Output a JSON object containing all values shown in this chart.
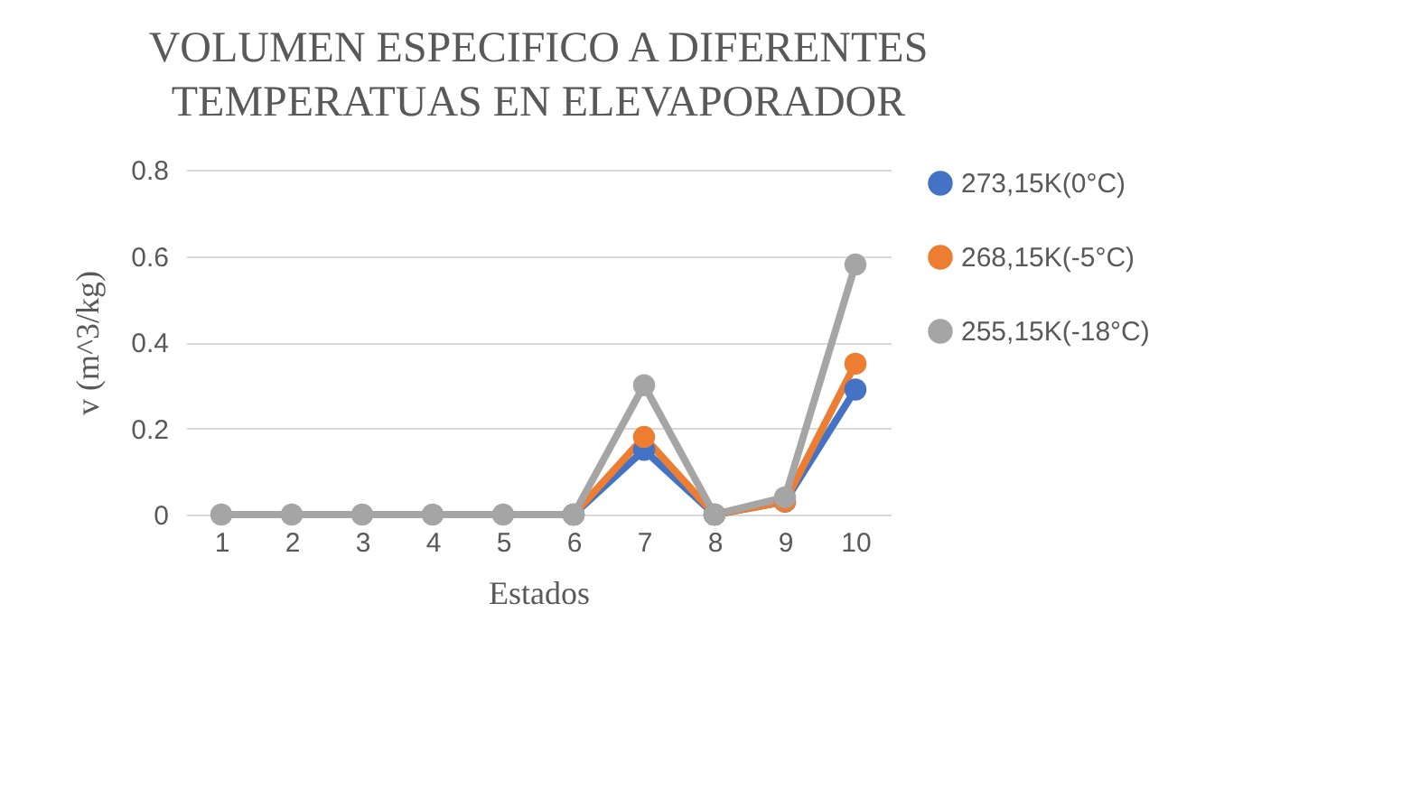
{
  "chart_data": {
    "type": "line",
    "title": [
      "VOLUMEN ESPECIFICO A DIFERENTES",
      "TEMPERATUAS EN ELEVAPORADOR"
    ],
    "xlabel": "Estados",
    "ylabel": "v (m^3/kg)",
    "categories": [
      "1",
      "2",
      "3",
      "4",
      "5",
      "6",
      "7",
      "8",
      "9",
      "10"
    ],
    "series": [
      {
        "name": "273,15K(0°C)",
        "color": "#4472c4",
        "values": [
          null,
          null,
          null,
          null,
          null,
          0,
          0.15,
          0,
          0.03,
          0.29
        ]
      },
      {
        "name": "268,15K(-5°C)",
        "color": "#ed7d31",
        "values": [
          null,
          null,
          null,
          null,
          null,
          0,
          0.18,
          0,
          0.03,
          0.35
        ]
      },
      {
        "name": "255,15K(-18°C)",
        "color": "#a5a5a5",
        "values": [
          0,
          0,
          0,
          0,
          0,
          0,
          0.3,
          0,
          0.04,
          0.58
        ]
      }
    ],
    "ylim": [
      0,
      0.8
    ],
    "yticks": [
      {
        "value": 0,
        "label": "0"
      },
      0.2,
      0.4,
      0.6,
      0.8
    ],
    "grid": "y",
    "legend": "right",
    "marker": "circle"
  }
}
